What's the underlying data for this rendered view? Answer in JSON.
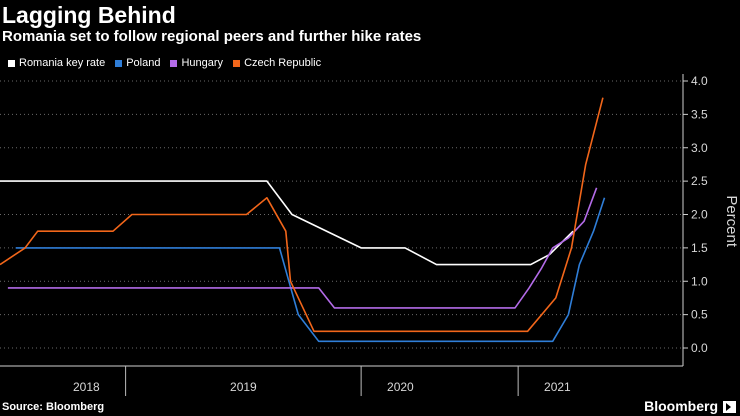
{
  "header": {
    "title": "Lagging Behind",
    "subtitle": "Romania set to follow regional peers and further hike rates"
  },
  "footer": {
    "source": "Source: Bloomberg",
    "brand": "Bloomberg",
    "logo_icon": "bloomberg-logo-icon"
  },
  "chart_data": {
    "type": "line",
    "ylabel": "Percent",
    "xlabel": "",
    "ylim": [
      -0.25,
      4.1
    ],
    "y_ticks": [
      "0.0",
      "0.5",
      "1.0",
      "1.5",
      "2.0",
      "2.5",
      "3.0",
      "3.5",
      "4.0"
    ],
    "x_tick_labels": [
      {
        "label": "2018",
        "x": 2018.15
      },
      {
        "label": "2019",
        "x": 2019.15
      },
      {
        "label": "2020",
        "x": 2020.15
      },
      {
        "label": "2021",
        "x": 2021.15
      }
    ],
    "x_dividers": [
      2018.4,
      2019.9,
      2020.9
    ],
    "xlim": [
      2017.6,
      2021.95
    ],
    "grid": "horizontal-dotted",
    "legend_position": "top-left",
    "series": [
      {
        "name": "Romania key rate",
        "color": "#ffffff",
        "points": [
          [
            2017.6,
            2.5
          ],
          [
            2019.3,
            2.5
          ],
          [
            2019.46,
            2.0
          ],
          [
            2019.9,
            1.5
          ],
          [
            2020.18,
            1.5
          ],
          [
            2020.38,
            1.25
          ],
          [
            2020.98,
            1.25
          ],
          [
            2021.1,
            1.4
          ],
          [
            2021.25,
            1.75
          ]
        ]
      },
      {
        "name": "Poland",
        "color": "#2f7ed8",
        "points": [
          [
            2017.7,
            1.5
          ],
          [
            2019.38,
            1.5
          ],
          [
            2019.44,
            1.0
          ],
          [
            2019.5,
            0.5
          ],
          [
            2019.63,
            0.1
          ],
          [
            2021.12,
            0.1
          ],
          [
            2021.22,
            0.5
          ],
          [
            2021.29,
            1.25
          ],
          [
            2021.38,
            1.75
          ],
          [
            2021.45,
            2.25
          ]
        ]
      },
      {
        "name": "Hungary",
        "color": "#b36be8",
        "points": [
          [
            2017.65,
            0.9
          ],
          [
            2019.63,
            0.9
          ],
          [
            2019.73,
            0.6
          ],
          [
            2020.88,
            0.6
          ],
          [
            2020.97,
            0.9
          ],
          [
            2021.05,
            1.2
          ],
          [
            2021.12,
            1.5
          ],
          [
            2021.22,
            1.65
          ],
          [
            2021.32,
            1.9
          ],
          [
            2021.4,
            2.4
          ]
        ]
      },
      {
        "name": "Czech Republic",
        "color": "#f2661a",
        "points": [
          [
            2017.6,
            1.25
          ],
          [
            2017.76,
            1.5
          ],
          [
            2017.84,
            1.75
          ],
          [
            2018.32,
            1.75
          ],
          [
            2018.44,
            2.0
          ],
          [
            2019.17,
            2.0
          ],
          [
            2019.3,
            2.25
          ],
          [
            2019.42,
            1.75
          ],
          [
            2019.45,
            1.0
          ],
          [
            2019.6,
            0.25
          ],
          [
            2020.96,
            0.25
          ],
          [
            2021.14,
            0.75
          ],
          [
            2021.24,
            1.5
          ],
          [
            2021.33,
            2.75
          ],
          [
            2021.44,
            3.75
          ]
        ]
      }
    ]
  }
}
